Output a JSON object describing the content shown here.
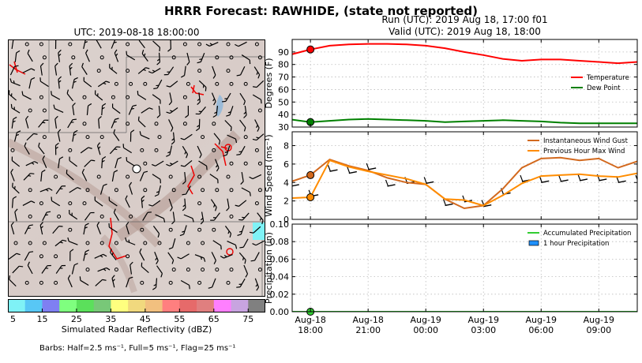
{
  "suptitle": "HRRR Forecast: RAWHIDE, (state not reported)",
  "map": {
    "title": "UTC: 2019-08-18 18:00:00",
    "colorbar": {
      "label": "Simulated Radar Reflectivity (dBZ)",
      "ticks": [
        "5",
        "15",
        "25",
        "35",
        "45",
        "55",
        "65",
        "75"
      ],
      "colors": [
        "#7ff2f6",
        "#58c7f5",
        "#7f7ff2",
        "#7fff7f",
        "#5be05b",
        "#78c878",
        "#ffff7f",
        "#f1d97e",
        "#f2c07f",
        "#ff7f7f",
        "#e66a6a",
        "#e07f7f",
        "#ff7fff",
        "#c8a4e0",
        "#808080"
      ]
    },
    "barbs_note": "Barbs: Half=2.5 ms⁻¹, Full=5 ms⁻¹, Flag=25 ms⁻¹"
  },
  "run_line": "Run (UTC): 2019 Aug 18, 17:00 f01",
  "valid_line": "Valid (UTC): 2019 Aug 18, 18:00",
  "x_ticks": [
    {
      "hour": 0,
      "line1": "Aug-18",
      "line2": "18:00"
    },
    {
      "hour": 3,
      "line1": "Aug-18",
      "line2": "21:00"
    },
    {
      "hour": 6,
      "line1": "Aug-19",
      "line2": "00:00"
    },
    {
      "hour": 9,
      "line1": "Aug-19",
      "line2": "03:00"
    },
    {
      "hour": 12,
      "line1": "Aug-19",
      "line2": "06:00"
    },
    {
      "hour": 15,
      "line1": "Aug-19",
      "line2": "09:00"
    }
  ],
  "chart_data": [
    {
      "type": "line",
      "ylabel": "Degrees (F)",
      "xlim": [
        -0.95,
        17
      ],
      "ylim": [
        30,
        100
      ],
      "yticks": [
        30,
        40,
        50,
        60,
        70,
        80,
        90
      ],
      "grid": true,
      "legend": "right",
      "x": [
        -1,
        0,
        1,
        2,
        3,
        4,
        5,
        6,
        7,
        8,
        9,
        10,
        11,
        12,
        13,
        14,
        15,
        16,
        17
      ],
      "series": [
        {
          "name": "Temperature",
          "color": "#ff0000",
          "values": [
            88,
            92,
            95,
            96,
            96.5,
            96.5,
            96,
            95,
            93,
            90,
            87.5,
            84.5,
            83,
            84,
            84,
            83,
            82,
            81,
            82
          ]
        },
        {
          "name": "Dew Point",
          "color": "#008000",
          "values": [
            36,
            34,
            35,
            36,
            36.5,
            36,
            35.5,
            35,
            34,
            34.5,
            35,
            35.5,
            35,
            34.5,
            33.5,
            33,
            33,
            33,
            33
          ]
        }
      ],
      "markers": [
        {
          "x": 0,
          "y": 92,
          "color": "#ff0000"
        },
        {
          "x": 0,
          "y": 34,
          "color": "#008000"
        }
      ]
    },
    {
      "type": "line",
      "ylabel": "Wind Speed (ms⁻¹)",
      "xlim": [
        -0.95,
        17
      ],
      "ylim": [
        0,
        9.5
      ],
      "yticks": [
        0,
        2,
        4,
        6,
        8
      ],
      "grid": true,
      "legend": "top-right",
      "x": [
        -1,
        0,
        1,
        2,
        3,
        4,
        5,
        6,
        7,
        8,
        9,
        10,
        11,
        12,
        13,
        14,
        15,
        16,
        17
      ],
      "series": [
        {
          "name": "Instantaneous Wind Gust",
          "color": "#d2691e",
          "values": [
            4.1,
            4.8,
            6.5,
            5.8,
            5.3,
            4.5,
            4.0,
            3.8,
            2.2,
            1.2,
            1.5,
            3.3,
            5.6,
            6.6,
            6.7,
            6.4,
            6.6,
            5.6,
            6.3
          ]
        },
        {
          "name": "Previous Hour Max Wind",
          "color": "#ff8c00",
          "values": [
            2.3,
            2.4,
            6.4,
            5.7,
            5.2,
            4.8,
            4.4,
            3.8,
            2.2,
            2.1,
            1.5,
            2.6,
            3.9,
            4.7,
            4.8,
            4.9,
            4.7,
            4.6,
            5.0
          ]
        }
      ],
      "barb_line": [
        3.6,
        2.5,
        5.2,
        5.0,
        5.4,
        3.6,
        3.9,
        3.9,
        1.5,
        1.9,
        1.4,
        2.7,
        4.1,
        4.0,
        4.1,
        4.2,
        4.2,
        4.0,
        4.1
      ],
      "markers": [
        {
          "x": 0,
          "y": 4.8,
          "color": "#d2691e"
        },
        {
          "x": 0,
          "y": 2.4,
          "color": "#ff8c00"
        }
      ]
    },
    {
      "type": "line",
      "ylabel": "Precipitation (in)",
      "xlim": [
        -0.95,
        17
      ],
      "ylim": [
        0,
        0.1
      ],
      "yticks": [
        0.0,
        0.02,
        0.04,
        0.06,
        0.08,
        0.1
      ],
      "ytick_labels": [
        "0.00",
        "0.02",
        "0.04",
        "0.06",
        "0.08",
        "0.10"
      ],
      "grid": true,
      "legend": "top-right",
      "x": [
        -1,
        0,
        1,
        2,
        3,
        4,
        5,
        6,
        7,
        8,
        9,
        10,
        11,
        12,
        13,
        14,
        15,
        16,
        17
      ],
      "series": [
        {
          "name": "Accumulated Precipitation",
          "color": "#32cd32",
          "values": [
            0,
            0,
            0,
            0,
            0,
            0,
            0,
            0,
            0,
            0,
            0,
            0,
            0,
            0,
            0,
            0,
            0,
            0,
            0
          ]
        },
        {
          "name": "1 hour Precipitation",
          "color": "#1e90ff",
          "kind": "bar",
          "values": [
            0,
            0,
            0,
            0,
            0,
            0,
            0,
            0,
            0,
            0,
            0,
            0,
            0,
            0,
            0,
            0,
            0,
            0,
            0
          ]
        }
      ],
      "markers": [
        {
          "x": 0,
          "y": 0,
          "color": "#32cd32"
        }
      ]
    }
  ]
}
